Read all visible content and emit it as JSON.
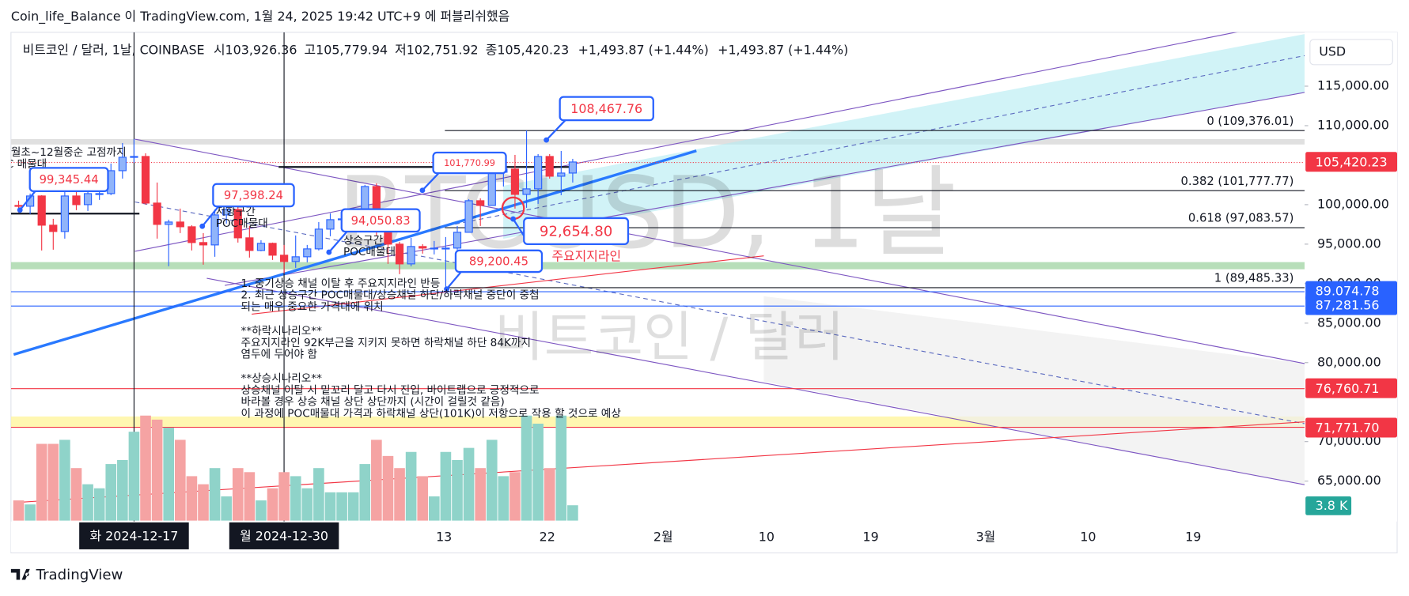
{
  "header": {
    "text": "Coin_life_Balance 이 TradingView.com, 1월 24, 2025 19:42 UTC+9 에 퍼블리쉬했음"
  },
  "legend": {
    "symbol": "비트코인 / 달러, 1날, COINBASE",
    "open_label": "시",
    "open": "103,926.36",
    "high_label": "고",
    "high": "105,779.94",
    "low_label": "저",
    "low": "102,751.92",
    "close_label": "종",
    "close": "105,420.23",
    "change": "+1,493.87 (+1.44%)",
    "change_repeat": "+1,493.87 (+1.44%)"
  },
  "currency": "USD",
  "price_axis": {
    "ticks": [
      {
        "value": 115000,
        "label": "115,000.00"
      },
      {
        "value": 110000,
        "label": "110,000.00"
      },
      {
        "value": 100000,
        "label": "100,000.00"
      },
      {
        "value": 95000,
        "label": "95,000.00"
      },
      {
        "value": 90000,
        "label": "90,000.00"
      },
      {
        "value": 85000,
        "label": "85,000.00"
      },
      {
        "value": 80000,
        "label": "80,000.00"
      },
      {
        "value": 70000,
        "label": "70,000.00"
      },
      {
        "value": 65000,
        "label": "65,000.00"
      }
    ]
  },
  "price_tags": [
    {
      "value": 105420.23,
      "label": "105,420.23",
      "color": "#f23645"
    },
    {
      "value": 89074.78,
      "label": "89,074.78",
      "color": "#2962ff"
    },
    {
      "value": 87281.56,
      "label": "87,281.56",
      "color": "#2962ff"
    },
    {
      "value": 76760.71,
      "label": "76,760.71",
      "color": "#f23645"
    },
    {
      "value": 71771.7,
      "label": "71,771.70",
      "color": "#f23645"
    }
  ],
  "volume_tag": {
    "label": "3.8 K",
    "color": "#26a69a"
  },
  "date_axis": {
    "highlighted": [
      "화 2024-12-17",
      "월 2024-12-30"
    ],
    "labels": [
      "13",
      "22",
      "2월",
      "10",
      "19",
      "3월",
      "10",
      "19"
    ]
  },
  "fib_levels": [
    {
      "value": 109376.01,
      "label": "0 (109,376.01)"
    },
    {
      "value": 101777.77,
      "label": "0.382 (101,777.77)"
    },
    {
      "value": 97083.57,
      "label": "0.618 (97,083.57)"
    },
    {
      "value": 89485.33,
      "label": "1 (89,485.33)"
    }
  ],
  "callouts": [
    "108,467.76",
    "101,770.99",
    "99,345.44",
    "97,398.24",
    "94,050.83",
    "92,654.80",
    "89,200.45"
  ],
  "annotations": {
    "support_line": "주요지지라인",
    "range_note": "월초~12월중순 고점까지",
    "poc_left": "POC 매물대",
    "resist_zone": "저항구간",
    "resist_poc": "POC매물대",
    "rise_zone": "상승구간",
    "rise_poc": "POC매물대"
  },
  "notes": [
    "1. 중기상승 채널 이탈 후 주요지지라인 반등",
    "2. 최근 상승구간 POC매물대/상승채널 하단/하락채널 중단이 중첩",
    "되는 매우 중요한 가격대에 위치",
    "**하락시나리오**",
    "주요지지라인 92K부근을 지키지 못하면 하락채널 하단 84K까지",
    "염두에 두어야 함",
    "**상승시나리오**",
    "상승채널 이탈 시 밑꼬리 달고 다시 진입, 바이트랩으로 긍정적으로",
    "바라볼 경우 상승 채널 상단 상단까지 (시간이 걸릴것 같음)",
    "이 과정에 POC매물대 가격과 하락채널 상단(101K)이 저항으로 작용 할 것으로 예상"
  ],
  "watermark": {
    "symbol": "BTCUSD, 1날",
    "name": "비트코인 / 달러"
  },
  "candles": [
    [
      99900,
      100500,
      99000,
      99800
    ],
    [
      99800,
      101400,
      98800,
      101100
    ],
    [
      101100,
      101200,
      94200,
      97400
    ],
    [
      97400,
      98200,
      94300,
      96600
    ],
    [
      96600,
      101900,
      95700,
      101100
    ],
    [
      101100,
      102500,
      99300,
      100000
    ],
    [
      100000,
      101900,
      99200,
      101400
    ],
    [
      101400,
      102600,
      100600,
      101400
    ],
    [
      101400,
      105200,
      101200,
      104300
    ],
    [
      104300,
      107800,
      103300,
      106000
    ],
    [
      106000,
      108300,
      105300,
      106100
    ],
    [
      106100,
      106500,
      100000,
      100200
    ],
    [
      100200,
      102800,
      95700,
      97500
    ],
    [
      97500,
      98100,
      92200,
      97800
    ],
    [
      97800,
      99500,
      96400,
      97200
    ],
    [
      97200,
      97400,
      94200,
      95200
    ],
    [
      95200,
      96400,
      92400,
      94900
    ],
    [
      94900,
      99400,
      93400,
      98700
    ],
    [
      98700,
      99900,
      97600,
      99400
    ],
    [
      99400,
      99900,
      95200,
      95800
    ],
    [
      95800,
      97300,
      93300,
      94200
    ],
    [
      94200,
      95500,
      94100,
      95100
    ],
    [
      95100,
      95200,
      93000,
      93600
    ],
    [
      93600,
      94900,
      91300,
      92800
    ],
    [
      92800,
      96100,
      92000,
      93400
    ],
    [
      93400,
      94900,
      92700,
      94400
    ],
    [
      94400,
      97800,
      94200,
      96900
    ],
    [
      96900,
      98900,
      96000,
      98100
    ],
    [
      98100,
      98700,
      97500,
      98200
    ],
    [
      98200,
      98800,
      97300,
      98300
    ],
    [
      98300,
      102500,
      97900,
      102300
    ],
    [
      102300,
      102700,
      96100,
      96900
    ],
    [
      96900,
      97200,
      92500,
      95000
    ],
    [
      95000,
      95300,
      91200,
      92500
    ],
    [
      92500,
      95800,
      92200,
      94700
    ],
    [
      94700,
      95000,
      93800,
      94500
    ],
    [
      94500,
      95400,
      93700,
      94500
    ],
    [
      94500,
      95900,
      89200,
      94500
    ],
    [
      94500,
      97300,
      94300,
      96500
    ],
    [
      96500,
      100700,
      96500,
      100500
    ],
    [
      100500,
      100800,
      97300,
      99900
    ],
    [
      99900,
      105900,
      99900,
      104100
    ],
    [
      104100,
      104900,
      102300,
      104500
    ],
    [
      104500,
      106300,
      99500,
      101300
    ],
    [
      101300,
      109400,
      99600,
      102000
    ],
    [
      102000,
      106400,
      100100,
      106100
    ],
    [
      106100,
      106400,
      103300,
      103600
    ],
    [
      103600,
      106800,
      101200,
      104000
    ],
    [
      104000,
      105800,
      102800,
      105400
    ]
  ],
  "volumes": [
    5,
    4,
    19,
    19,
    20,
    13,
    9,
    8,
    14,
    15,
    22,
    26,
    25,
    23,
    20,
    11,
    9,
    13,
    6,
    13,
    12,
    5,
    8,
    12,
    11,
    8,
    13,
    7,
    7,
    7,
    14,
    20,
    16,
    13,
    17,
    11,
    6,
    17,
    15,
    18,
    13,
    20,
    11,
    12,
    26,
    24,
    13,
    26,
    3.8
  ],
  "footer": "TradingView"
}
